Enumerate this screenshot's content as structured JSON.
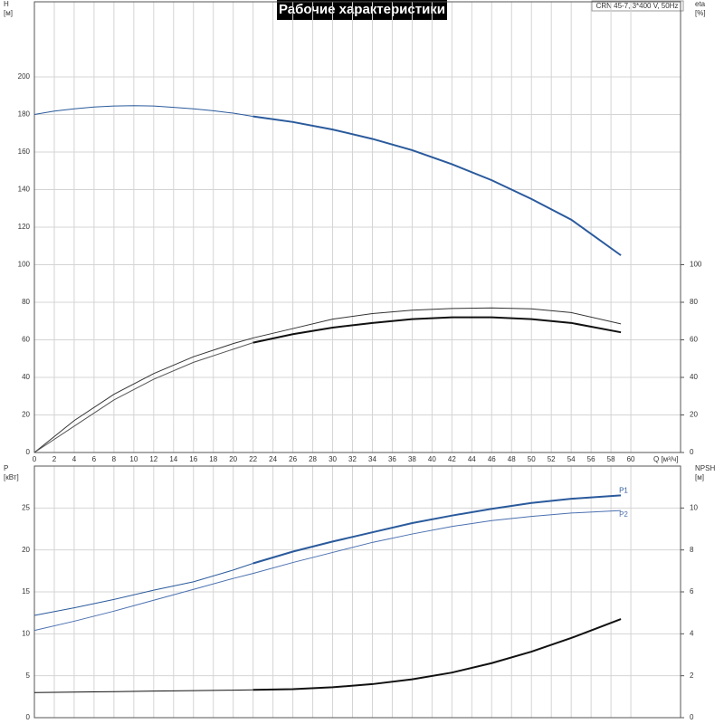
{
  "chart_data": [
    {
      "type": "line",
      "title": "Рабочие характеристики",
      "subtitle": "CRN 45-7, 3*400 V, 50Hz",
      "xlabel": "Q [м³/ч]",
      "ylabel": "H",
      "yunit": "[м]",
      "y2label": "eta",
      "y2unit": "[%]",
      "xlim": [
        0,
        65
      ],
      "xticks": [
        0,
        2,
        4,
        6,
        8,
        10,
        12,
        14,
        16,
        18,
        20,
        22,
        24,
        26,
        28,
        30,
        32,
        34,
        36,
        38,
        40,
        42,
        44,
        46,
        48,
        50,
        52,
        54,
        56,
        58,
        60
      ],
      "ylim": [
        0,
        240
      ],
      "yticks": [
        0,
        20,
        40,
        60,
        80,
        100,
        120,
        140,
        160,
        180,
        200
      ],
      "y2lim": [
        0,
        240
      ],
      "y2ticks": [
        0,
        20,
        40,
        60,
        80,
        100
      ],
      "grid": true,
      "series": [
        {
          "color": "#2a5a9c",
          "width": 1,
          "x": [
            0,
            2,
            4,
            6,
            8,
            10,
            12,
            14,
            16,
            18,
            20,
            22
          ],
          "values": [
            180,
            181.8,
            183,
            184,
            184.5,
            184.7,
            184.5,
            183.8,
            183,
            182,
            180.7,
            179
          ]
        },
        {
          "color": "#2a5a9c",
          "width": 2,
          "x": [
            22,
            26,
            30,
            34,
            38,
            42,
            46,
            50,
            54,
            59
          ],
          "values": [
            179,
            176,
            172,
            167,
            161,
            153.5,
            145,
            135,
            124,
            105
          ]
        },
        {
          "color": "#333333",
          "width": 1,
          "axis": "y2",
          "x": [
            0,
            4,
            8,
            12,
            16,
            20,
            22,
            26,
            30,
            34,
            38,
            42,
            46,
            50,
            54,
            59
          ],
          "values": [
            0,
            17,
            31,
            42,
            51,
            58,
            61,
            66,
            71,
            74,
            75.8,
            76.7,
            77,
            76.5,
            74.5,
            68.5
          ]
        },
        {
          "color": "#555555",
          "width": 1,
          "axis": "y2",
          "x": [
            0,
            4,
            8,
            12,
            16,
            20,
            22
          ],
          "values": [
            0,
            14,
            28,
            39,
            48,
            55,
            58.5
          ]
        },
        {
          "color": "#111111",
          "width": 2,
          "axis": "y2",
          "x": [
            22,
            26,
            30,
            34,
            38,
            42,
            46,
            50,
            54,
            59
          ],
          "values": [
            58.5,
            63,
            66.5,
            69,
            71,
            72,
            72,
            71,
            69,
            64
          ]
        }
      ]
    },
    {
      "type": "line",
      "ylabel": "P",
      "yunit": "[кВт]",
      "y2label": "NPSH",
      "y2unit": "[м]",
      "xlim": [
        0,
        65
      ],
      "ylim": [
        0,
        30
      ],
      "yticks": [
        0,
        5,
        10,
        15,
        20,
        25
      ],
      "y2lim": [
        0,
        12
      ],
      "y2ticks": [
        0,
        2,
        4,
        6,
        8,
        10
      ],
      "grid": true,
      "series": [
        {
          "color": "#2a5a9c",
          "width": 1,
          "x": [
            0,
            4,
            8,
            12,
            16,
            20,
            22
          ],
          "values": [
            12.2,
            13.1,
            14.1,
            15.2,
            16.2,
            17.6,
            18.4
          ]
        },
        {
          "name": "P1",
          "color": "#2a5a9c",
          "width": 2,
          "x": [
            22,
            26,
            30,
            34,
            38,
            42,
            46,
            50,
            54,
            59
          ],
          "values": [
            18.4,
            19.8,
            21,
            22.1,
            23.2,
            24.1,
            24.9,
            25.6,
            26.1,
            26.5
          ]
        },
        {
          "name": "P2",
          "color": "#4a70b0",
          "width": 1,
          "x": [
            0,
            4,
            8,
            12,
            16,
            20,
            22,
            26,
            30,
            34,
            38,
            42,
            46,
            50,
            54,
            59
          ],
          "values": [
            10.4,
            11.5,
            12.7,
            14,
            15.3,
            16.6,
            17.2,
            18.5,
            19.7,
            20.9,
            21.9,
            22.8,
            23.5,
            24,
            24.4,
            24.7
          ]
        },
        {
          "color": "#111111",
          "width": 1,
          "axis": "y2",
          "x": [
            0,
            4,
            8,
            12,
            16,
            20,
            22
          ],
          "values": [
            1.2,
            1.22,
            1.24,
            1.27,
            1.29,
            1.31,
            1.33
          ]
        },
        {
          "color": "#111111",
          "width": 2,
          "axis": "y2",
          "x": [
            22,
            26,
            30,
            34,
            38,
            42,
            46,
            50,
            54,
            59
          ],
          "values": [
            1.33,
            1.36,
            1.45,
            1.6,
            1.83,
            2.15,
            2.6,
            3.15,
            3.8,
            4.7
          ]
        }
      ]
    }
  ]
}
